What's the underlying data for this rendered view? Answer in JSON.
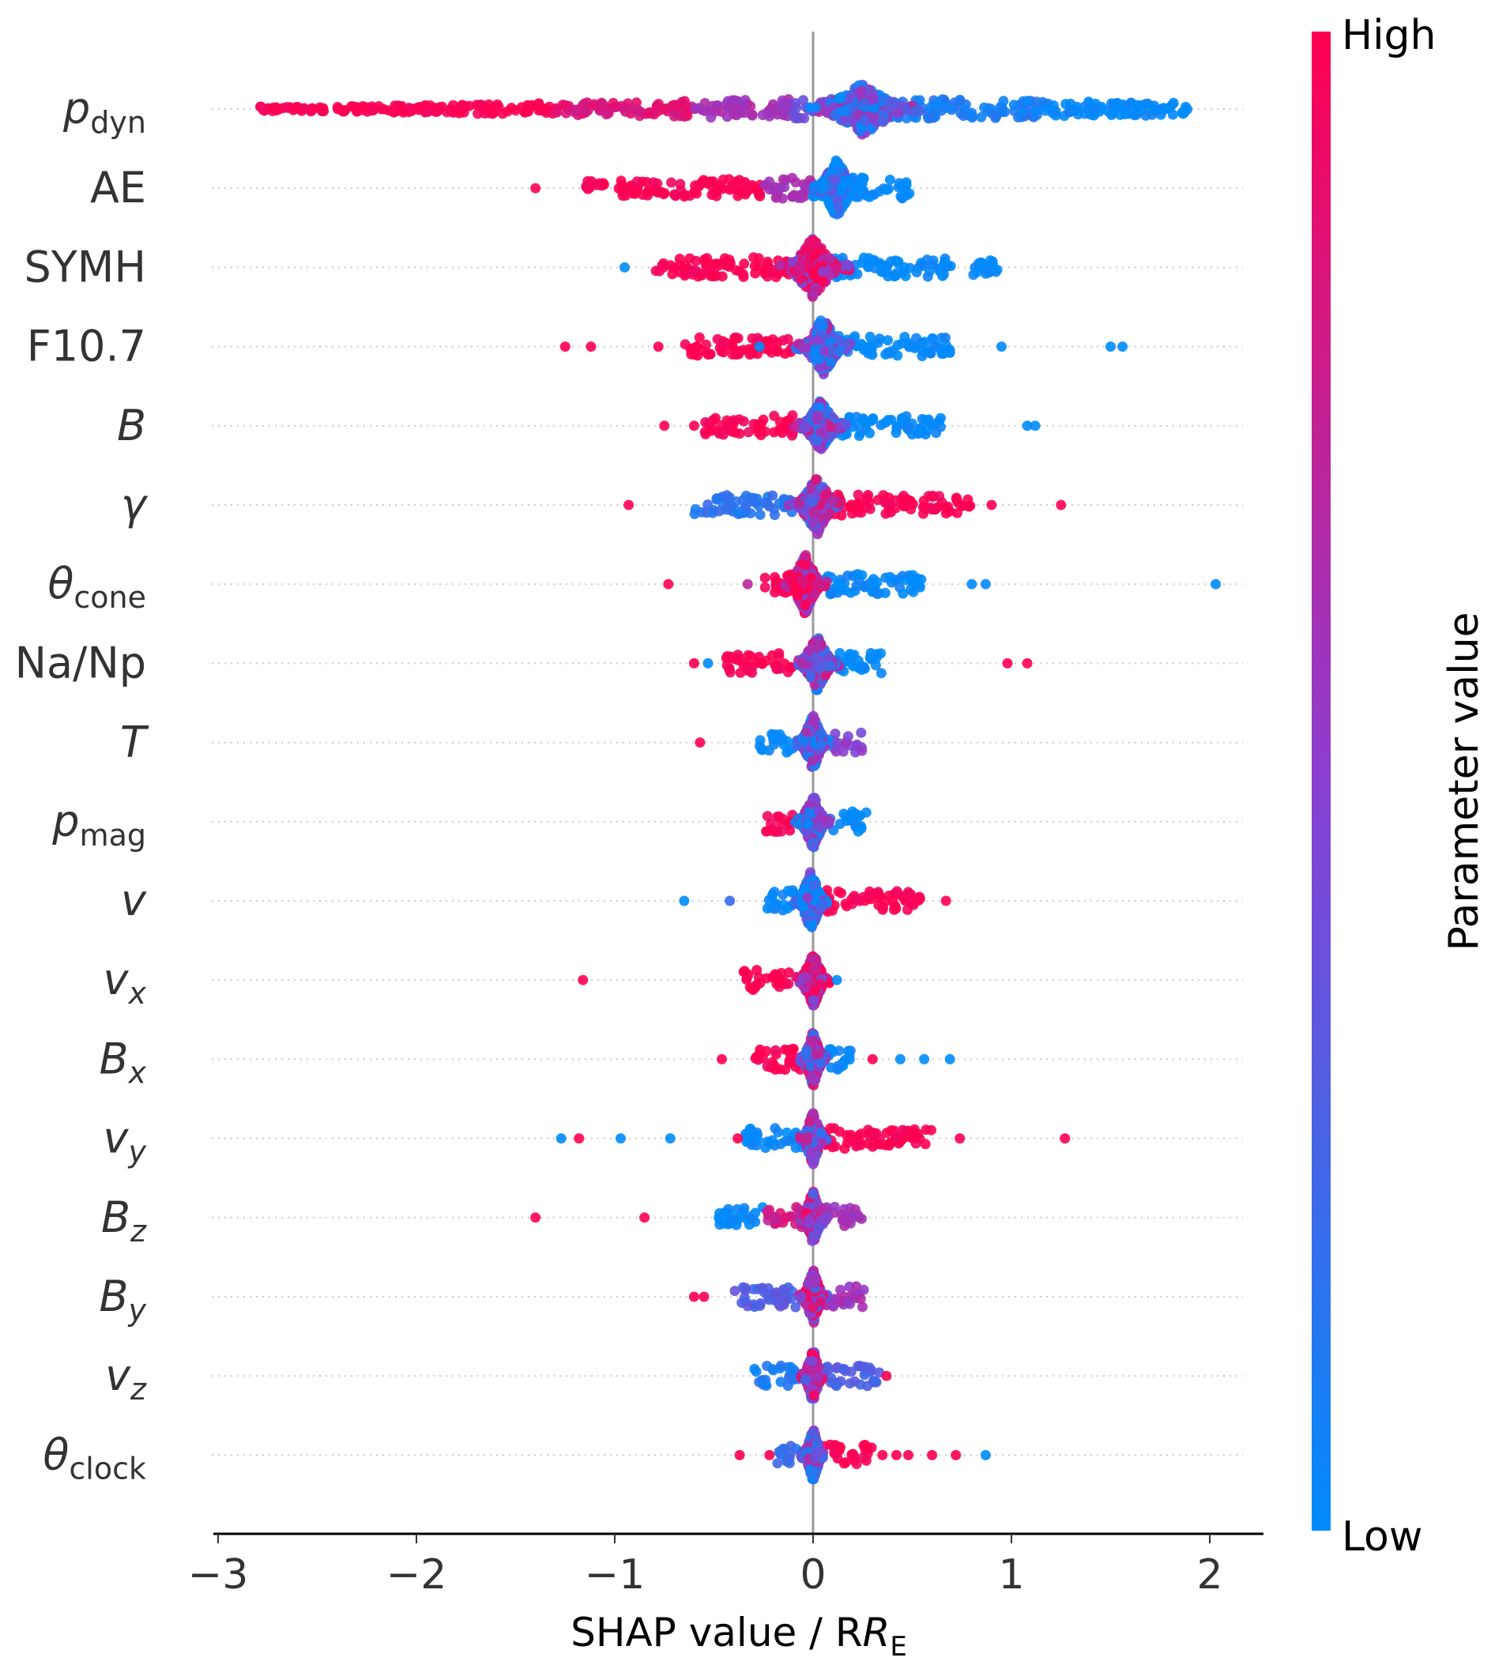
{
  "chart_data": {
    "type": "scatter",
    "subtype": "beeswarm",
    "title": "",
    "xlabel": "SHAP value / R",
    "xlabel_sub": "E",
    "xlim": [
      -3.05,
      2.3
    ],
    "xticks": [
      -3,
      -2,
      -1,
      0,
      1,
      2
    ],
    "xtick_labels": [
      "−3",
      "−2",
      "−1",
      "0",
      "1",
      "2"
    ],
    "colorbar": {
      "label": "Parameter value",
      "high_label": "High",
      "low_label": "Low",
      "colors": {
        "low": "#008bfb",
        "mid": "#8a3fd1",
        "high": "#ff0051"
      }
    },
    "zero_line_color": "#999999",
    "features": [
      {
        "label": "p",
        "sub": "dyn",
        "italic": true,
        "segments": [
          [
            -2.8,
            -2.45,
            1
          ],
          [
            -2.4,
            -1.3,
            1
          ],
          [
            -1.3,
            -0.6,
            0.85
          ],
          [
            -0.6,
            -0.1,
            0.6
          ],
          [
            -0.1,
            0.3,
            0.4
          ],
          [
            0.3,
            1.2,
            0.1
          ],
          [
            1.2,
            1.9,
            0
          ]
        ],
        "core": {
          "center": 0.25,
          "width": 0.35,
          "height": 0.4,
          "value": 0.3
        },
        "outliers": []
      },
      {
        "label": "AE",
        "sub": "",
        "italic": false,
        "segments": [
          [
            -1.15,
            -1.05,
            1
          ],
          [
            -1.0,
            -0.25,
            1
          ],
          [
            -0.25,
            0,
            0.6
          ],
          [
            0,
            0.5,
            0
          ]
        ],
        "core": {
          "center": 0.12,
          "width": 0.15,
          "height": 0.45,
          "value": 0
        },
        "outliers": [
          [
            -1.4,
            1
          ]
        ]
      },
      {
        "label": "SYMH",
        "sub": "",
        "italic": false,
        "segments": [
          [
            -0.8,
            -0.1,
            1
          ],
          [
            0.1,
            0.7,
            0
          ],
          [
            0.8,
            0.95,
            0
          ]
        ],
        "core": {
          "center": 0.0,
          "width": 0.2,
          "height": 0.45,
          "value": 0.8
        },
        "outliers": [
          [
            -0.95,
            0
          ]
        ]
      },
      {
        "label": "F10.7",
        "sub": "",
        "italic": false,
        "segments": [
          [
            -0.65,
            -0.1,
            1
          ],
          [
            0.1,
            0.7,
            0
          ]
        ],
        "core": {
          "center": 0.05,
          "width": 0.15,
          "height": 0.45,
          "value": 0.35
        },
        "outliers": [
          [
            -1.25,
            1
          ],
          [
            -1.12,
            1
          ],
          [
            -0.78,
            1
          ],
          [
            -0.27,
            0
          ],
          [
            0.95,
            0
          ],
          [
            1.5,
            0
          ],
          [
            1.56,
            0
          ]
        ]
      },
      {
        "label": "B",
        "sub": "",
        "italic": true,
        "segments": [
          [
            -0.55,
            -0.1,
            1
          ],
          [
            0.1,
            0.65,
            0
          ]
        ],
        "core": {
          "center": 0.04,
          "width": 0.15,
          "height": 0.4,
          "value": 0.4
        },
        "outliers": [
          [
            -0.75,
            1
          ],
          [
            -0.6,
            1
          ],
          [
            1.08,
            0
          ],
          [
            1.12,
            0
          ]
        ]
      },
      {
        "label": "γ",
        "sub": "",
        "italic": true,
        "segments": [
          [
            -0.6,
            -0.1,
            0.15
          ],
          [
            0.1,
            0.8,
            1
          ]
        ],
        "core": {
          "center": 0.02,
          "width": 0.15,
          "height": 0.45,
          "value": 0.5
        },
        "outliers": [
          [
            -0.93,
            1
          ],
          [
            0.9,
            1
          ],
          [
            1.25,
            1
          ]
        ]
      },
      {
        "label": "θ",
        "sub": "cone",
        "italic": true,
        "segments": [
          [
            -0.25,
            0,
            1
          ],
          [
            0.05,
            0.55,
            0
          ]
        ],
        "core": {
          "center": -0.04,
          "width": 0.12,
          "height": 0.45,
          "value": 0.8
        },
        "outliers": [
          [
            -0.73,
            1
          ],
          [
            -0.33,
            0.7
          ],
          [
            0.8,
            0
          ],
          [
            0.87,
            0
          ],
          [
            2.03,
            0
          ]
        ]
      },
      {
        "label": "Na/Np",
        "sub": "",
        "italic": false,
        "segments": [
          [
            -0.45,
            -0.1,
            1
          ],
          [
            0.05,
            0.35,
            0
          ]
        ],
        "core": {
          "center": 0.02,
          "width": 0.13,
          "height": 0.42,
          "value": 0.45
        },
        "outliers": [
          [
            -0.6,
            1
          ],
          [
            -0.53,
            0
          ],
          [
            0.98,
            1
          ],
          [
            1.08,
            1
          ]
        ]
      },
      {
        "label": "T",
        "sub": "",
        "italic": true,
        "segments": [
          [
            -0.27,
            -0.1,
            0
          ],
          [
            0.1,
            0.25,
            0.5
          ]
        ],
        "core": {
          "center": 0.0,
          "width": 0.1,
          "height": 0.42,
          "value": 0.3
        },
        "outliers": [
          [
            -0.57,
            1
          ]
        ]
      },
      {
        "label": "p",
        "sub": "mag",
        "italic": true,
        "segments": [
          [
            -0.25,
            -0.1,
            1
          ],
          [
            0.1,
            0.27,
            0
          ]
        ],
        "core": {
          "center": 0.0,
          "width": 0.1,
          "height": 0.42,
          "value": 0.3
        },
        "outliers": []
      },
      {
        "label": "v",
        "sub": "",
        "italic": true,
        "segments": [
          [
            -0.27,
            -0.1,
            0
          ],
          [
            0.05,
            0.55,
            1
          ]
        ],
        "core": {
          "center": -0.01,
          "width": 0.1,
          "height": 0.45,
          "value": 0.15
        },
        "outliers": [
          [
            -0.65,
            0
          ],
          [
            -0.42,
            0.2
          ],
          [
            0.67,
            1
          ]
        ]
      },
      {
        "label": "v",
        "sub": "x",
        "italic": true,
        "segments": [
          [
            -0.35,
            -0.1,
            1
          ]
        ],
        "core": {
          "center": 0.0,
          "width": 0.1,
          "height": 0.42,
          "value": 0.8
        },
        "outliers": [
          [
            -1.16,
            1
          ],
          [
            0.12,
            0
          ]
        ]
      },
      {
        "label": "B",
        "sub": "x",
        "italic": true,
        "segments": [
          [
            -0.32,
            -0.05,
            1
          ],
          [
            0.05,
            0.2,
            0
          ]
        ],
        "core": {
          "center": 0.0,
          "width": 0.08,
          "height": 0.42,
          "value": 0.5
        },
        "outliers": [
          [
            -0.46,
            1
          ],
          [
            0.3,
            1
          ],
          [
            0.44,
            0
          ],
          [
            0.56,
            0
          ],
          [
            0.69,
            0
          ]
        ]
      },
      {
        "label": "v",
        "sub": "y",
        "italic": true,
        "segments": [
          [
            -0.35,
            -0.05,
            0
          ],
          [
            0.05,
            0.6,
            1
          ]
        ],
        "core": {
          "center": 0.0,
          "width": 0.08,
          "height": 0.42,
          "value": 0.5
        },
        "outliers": [
          [
            -1.27,
            0
          ],
          [
            -1.18,
            1
          ],
          [
            -0.97,
            0
          ],
          [
            -0.72,
            0
          ],
          [
            -0.38,
            1
          ],
          [
            0.74,
            1
          ],
          [
            1.27,
            1
          ]
        ]
      },
      {
        "label": "B",
        "sub": "z",
        "italic": true,
        "segments": [
          [
            -0.48,
            -0.25,
            0
          ],
          [
            -0.25,
            -0.05,
            0.8
          ],
          [
            0.05,
            0.27,
            0.6
          ]
        ],
        "core": {
          "center": 0.0,
          "width": 0.08,
          "height": 0.42,
          "value": 0.6
        },
        "outliers": [
          [
            -1.4,
            1
          ],
          [
            -0.85,
            1
          ]
        ]
      },
      {
        "label": "B",
        "sub": "y",
        "italic": true,
        "segments": [
          [
            -0.4,
            -0.05,
            0.3
          ],
          [
            0.05,
            0.27,
            0.6
          ]
        ],
        "core": {
          "center": 0.0,
          "width": 0.08,
          "height": 0.42,
          "value": 0.6
        },
        "outliers": [
          [
            -0.6,
            1
          ],
          [
            -0.55,
            1
          ]
        ]
      },
      {
        "label": "v",
        "sub": "z",
        "italic": true,
        "segments": [
          [
            -0.3,
            -0.05,
            0.1
          ],
          [
            0.05,
            0.35,
            0.3
          ]
        ],
        "core": {
          "center": 0.0,
          "width": 0.07,
          "height": 0.42,
          "value": 0.6
        },
        "outliers": [
          [
            0.37,
            1
          ]
        ]
      },
      {
        "label": "θ",
        "sub": "clock",
        "italic": true,
        "segments": [
          [
            -0.18,
            -0.05,
            0.2
          ],
          [
            0.05,
            0.3,
            1
          ]
        ],
        "core": {
          "center": 0.0,
          "width": 0.07,
          "height": 0.42,
          "value": 0.4
        },
        "outliers": [
          [
            -0.37,
            1
          ],
          [
            -0.22,
            1
          ],
          [
            0.35,
            1
          ],
          [
            0.42,
            1
          ],
          [
            0.48,
            1
          ],
          [
            0.6,
            1
          ],
          [
            0.72,
            1
          ],
          [
            0.87,
            0
          ]
        ]
      }
    ]
  }
}
